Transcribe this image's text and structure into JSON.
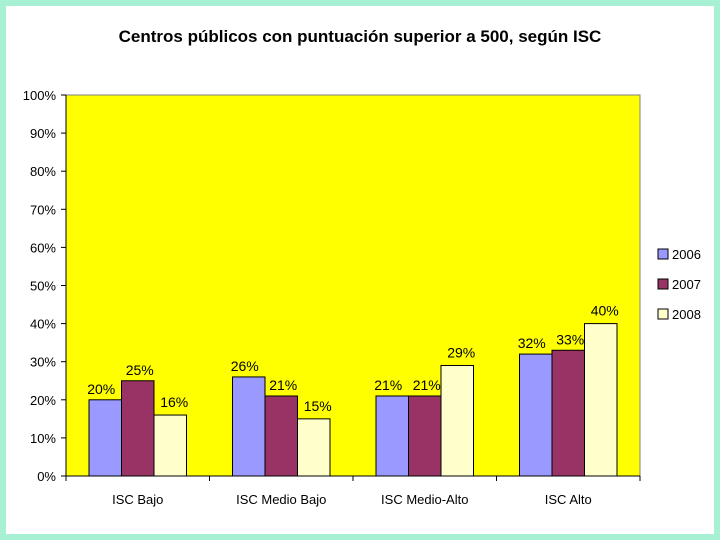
{
  "chart_data": {
    "type": "bar",
    "title": "Centros públicos con puntuación superior a 500, según ISC",
    "categories": [
      "ISC Bajo",
      "ISC Medio Bajo",
      "ISC Medio-Alto",
      "ISC Alto"
    ],
    "series": [
      {
        "name": "2006",
        "values": [
          20,
          26,
          21,
          32
        ],
        "labels": [
          "20%",
          "26%",
          "21%",
          "32%"
        ]
      },
      {
        "name": "2007",
        "values": [
          25,
          21,
          21,
          33
        ],
        "labels": [
          "25%",
          "21%",
          "21%",
          "33%"
        ]
      },
      {
        "name": "2008",
        "values": [
          16,
          15,
          29,
          40
        ],
        "labels": [
          "16%",
          "15%",
          "29%",
          "40%"
        ]
      }
    ],
    "ylim": [
      0,
      100
    ],
    "yticks": [
      "0%",
      "10%",
      "20%",
      "30%",
      "40%",
      "50%",
      "60%",
      "70%",
      "80%",
      "90%",
      "100%"
    ],
    "xlabel": "",
    "ylabel": "",
    "grid": false,
    "legend_position": "right",
    "colors": {
      "plot_background": "#ffff00",
      "series": [
        "#9999ff",
        "#993366",
        "#ffffcc"
      ]
    }
  }
}
